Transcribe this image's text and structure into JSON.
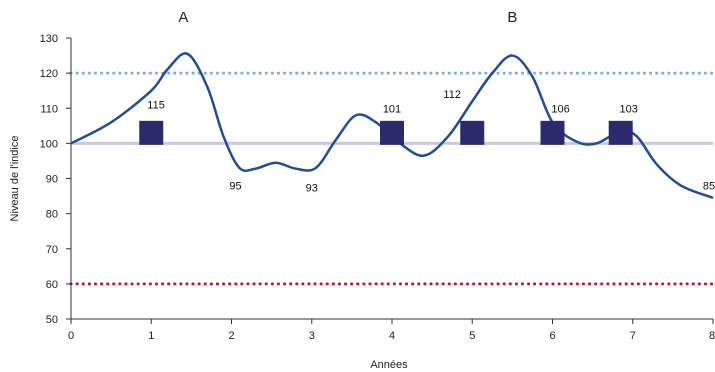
{
  "chart_data": {
    "type": "line",
    "xlabel": "Années",
    "ylabel": "Niveau de l'indice",
    "xlim": [
      0,
      8
    ],
    "ylim": [
      50,
      130
    ],
    "x_ticks": [
      "0",
      "1",
      "2",
      "3",
      "4",
      "5",
      "6",
      "7",
      "8"
    ],
    "y_ticks": [
      "50",
      "60",
      "70",
      "80",
      "90",
      "100",
      "110",
      "120",
      "130"
    ],
    "grid": false,
    "series": [
      {
        "color": "#1f4e96",
        "x": [
          0,
          0.5,
          1,
          1.2,
          1.45,
          1.7,
          1.9,
          2.1,
          2.3,
          2.55,
          2.8,
          3.05,
          3.3,
          3.55,
          3.8,
          4.1,
          4.4,
          4.7,
          5.0,
          5.25,
          5.5,
          5.75,
          6.0,
          6.3,
          6.55,
          6.85,
          7.05,
          7.3,
          7.6,
          8.0
        ],
        "y": [
          100,
          106,
          115,
          121,
          125.5,
          116,
          102,
          93,
          92.8,
          94.5,
          92.8,
          93,
          101,
          108,
          106,
          100,
          96.5,
          102,
          112,
          120,
          125,
          119,
          106,
          100.5,
          100,
          103.5,
          102,
          94,
          88,
          84.5
        ]
      }
    ],
    "reference_lines": [
      {
        "y": 120,
        "color": "#7aaedc",
        "style": "dotted"
      },
      {
        "y": 100,
        "color": "#c8c8e4",
        "style": "solid"
      },
      {
        "y": 60,
        "color": "#c8102e",
        "style": "dotted"
      }
    ],
    "markers": {
      "shape": "square",
      "color": "#2b2a6c",
      "points": [
        {
          "x": 1.0,
          "y": 103
        },
        {
          "x": 4.0,
          "y": 103
        },
        {
          "x": 5.0,
          "y": 103
        },
        {
          "x": 6.0,
          "y": 103
        },
        {
          "x": 6.85,
          "y": 103
        }
      ]
    },
    "point_labels": [
      {
        "text": "115",
        "x": 1.06,
        "y": 111
      },
      {
        "text": "95",
        "x": 2.05,
        "y": 88
      },
      {
        "text": "93",
        "x": 3.0,
        "y": 87.5
      },
      {
        "text": "101",
        "x": 4.0,
        "y": 110
      },
      {
        "text": "112",
        "x": 4.75,
        "y": 114
      },
      {
        "text": "106",
        "x": 6.1,
        "y": 110
      },
      {
        "text": "103",
        "x": 6.95,
        "y": 110
      },
      {
        "text": "85",
        "x": 7.95,
        "y": 88
      }
    ],
    "region_labels": [
      {
        "text": "A",
        "x": 1.4,
        "y": 136
      },
      {
        "text": "B",
        "x": 5.5,
        "y": 136
      }
    ]
  }
}
